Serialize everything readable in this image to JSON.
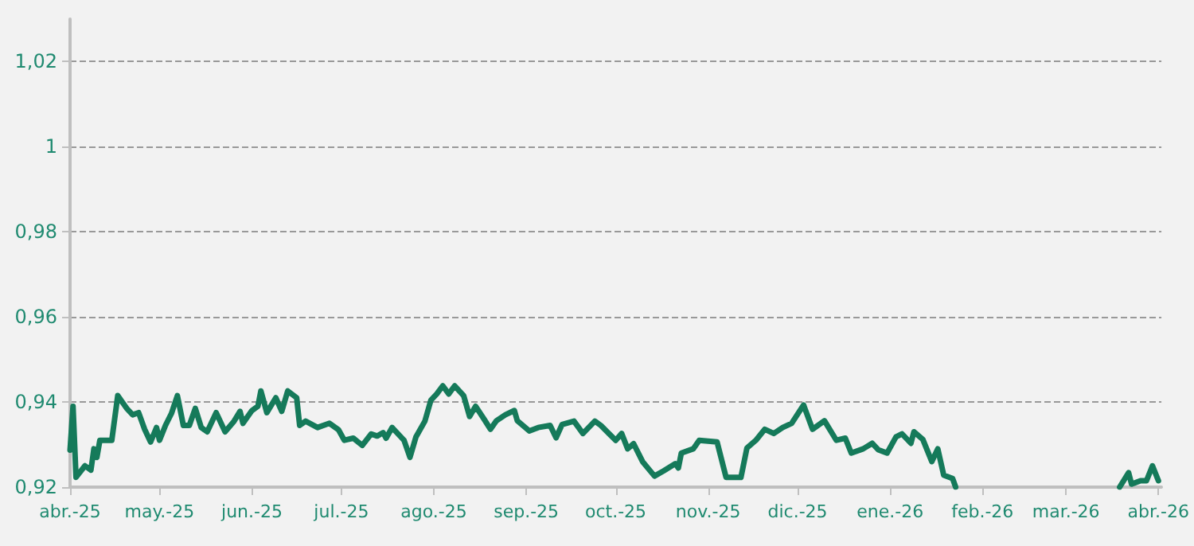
{
  "chart_data": {
    "type": "line",
    "xlim": [
      "2025-04-01",
      "2026-04-02"
    ],
    "xticks": [
      {
        "value": "2025-04-01",
        "label": "abr.-25"
      },
      {
        "value": "2025-05-01",
        "label": "may.-25"
      },
      {
        "value": "2025-06-01",
        "label": "jun.-25"
      },
      {
        "value": "2025-07-01",
        "label": "jul.-25"
      },
      {
        "value": "2025-08-01",
        "label": "ago.-25"
      },
      {
        "value": "2025-09-01",
        "label": "sep.-25"
      },
      {
        "value": "2025-10-01",
        "label": "oct.-25"
      },
      {
        "value": "2025-11-01",
        "label": "nov.-25"
      },
      {
        "value": "2025-12-01",
        "label": "dic.-25"
      },
      {
        "value": "2026-01-01",
        "label": "ene.-26"
      },
      {
        "value": "2026-02-01",
        "label": "feb.-26"
      },
      {
        "value": "2026-03-01",
        "label": "mar.-26"
      },
      {
        "value": "2026-04-01",
        "label": "abr.-26"
      }
    ],
    "ylim": [
      0.92,
      1.03
    ],
    "yticks": [
      {
        "value": 0.92,
        "label": "0,92"
      },
      {
        "value": 0.94,
        "label": "0,94"
      },
      {
        "value": 0.96,
        "label": "0,96"
      },
      {
        "value": 0.98,
        "label": "0,98"
      },
      {
        "value": 1,
        "label": "1"
      },
      {
        "value": 1.02,
        "label": "1,02"
      }
    ],
    "grid": "y",
    "marker": "none",
    "line_style": "solid",
    "series": [
      {
        "color": "#157a5a",
        "x": [
          "2025-04-01",
          "2025-04-02",
          "2025-04-03",
          "2025-04-06",
          "2025-04-08",
          "2025-04-09",
          "2025-04-10",
          "2025-04-11",
          "2025-04-15",
          "2025-04-17",
          "2025-04-20",
          "2025-04-22",
          "2025-04-24",
          "2025-04-26",
          "2025-04-28",
          "2025-04-30",
          "2025-05-01",
          "2025-05-03",
          "2025-05-05",
          "2025-05-07",
          "2025-05-09",
          "2025-05-11",
          "2025-05-13",
          "2025-05-15",
          "2025-05-17",
          "2025-05-20",
          "2025-05-23",
          "2025-05-26",
          "2025-05-28",
          "2025-05-29",
          "2025-06-01",
          "2025-06-03",
          "2025-06-04",
          "2025-06-06",
          "2025-06-09",
          "2025-06-11",
          "2025-06-13",
          "2025-06-16",
          "2025-06-17",
          "2025-06-19",
          "2025-06-23",
          "2025-06-27",
          "2025-06-30",
          "2025-07-02",
          "2025-07-05",
          "2025-07-08",
          "2025-07-11",
          "2025-07-13",
          "2025-07-15",
          "2025-07-16",
          "2025-07-18",
          "2025-07-22",
          "2025-07-24",
          "2025-07-26",
          "2025-07-29",
          "2025-07-31",
          "2025-08-02",
          "2025-08-04",
          "2025-08-06",
          "2025-08-08",
          "2025-08-11",
          "2025-08-13",
          "2025-08-15",
          "2025-08-18",
          "2025-08-20",
          "2025-08-22",
          "2025-08-25",
          "2025-08-28",
          "2025-08-29",
          "2025-09-02",
          "2025-09-05",
          "2025-09-09",
          "2025-09-11",
          "2025-09-13",
          "2025-09-17",
          "2025-09-20",
          "2025-09-24",
          "2025-09-26",
          "2025-10-01",
          "2025-10-03",
          "2025-10-05",
          "2025-10-07",
          "2025-10-10",
          "2025-10-14",
          "2025-10-17",
          "2025-10-21",
          "2025-10-22",
          "2025-10-23",
          "2025-10-27",
          "2025-10-29",
          "2025-11-04",
          "2025-11-07",
          "2025-11-12",
          "2025-11-14",
          "2025-11-17",
          "2025-11-20",
          "2025-11-23",
          "2025-11-26",
          "2025-11-29",
          "2025-12-03",
          "2025-12-06",
          "2025-12-10",
          "2025-12-14",
          "2025-12-17",
          "2025-12-19",
          "2025-12-23",
          "2025-12-26",
          "2025-12-28",
          "2025-12-31",
          "2026-01-03",
          "2026-01-05",
          "2026-01-08",
          "2026-01-09",
          "2026-01-12",
          "2026-01-15",
          "2026-01-17",
          "2026-01-19",
          "2026-01-22",
          "2026-01-23",
          "2026-01-24",
          "2026-03-18",
          "2026-03-19",
          "2026-03-22",
          "2026-03-23",
          "2026-03-26",
          "2026-03-28",
          "2026-03-30",
          "2026-04-01"
        ],
        "values": [
          0.9287,
          0.939,
          0.9223,
          0.925,
          0.924,
          0.929,
          0.927,
          0.931,
          0.931,
          0.9415,
          0.9385,
          0.937,
          0.9375,
          0.9336,
          0.9306,
          0.934,
          0.931,
          0.9345,
          0.9373,
          0.9415,
          0.9345,
          0.9345,
          0.9385,
          0.934,
          0.933,
          0.9375,
          0.933,
          0.9355,
          0.9378,
          0.935,
          0.938,
          0.939,
          0.9426,
          0.9375,
          0.941,
          0.9378,
          0.9426,
          0.941,
          0.9345,
          0.9355,
          0.934,
          0.935,
          0.9335,
          0.931,
          0.9315,
          0.9298,
          0.9325,
          0.932,
          0.9328,
          0.9315,
          0.934,
          0.931,
          0.927,
          0.9318,
          0.9355,
          0.9404,
          0.9419,
          0.9438,
          0.9419,
          0.9438,
          0.9415,
          0.9366,
          0.939,
          0.9358,
          0.9336,
          0.9356,
          0.937,
          0.938,
          0.9356,
          0.9332,
          0.934,
          0.9345,
          0.9316,
          0.9347,
          0.9355,
          0.9326,
          0.9355,
          0.9345,
          0.931,
          0.9326,
          0.929,
          0.9302,
          0.926,
          0.9226,
          0.9238,
          0.9255,
          0.9245,
          0.928,
          0.929,
          0.931,
          0.9306,
          0.9223,
          0.9223,
          0.9292,
          0.931,
          0.9336,
          0.9326,
          0.934,
          0.935,
          0.9393,
          0.9336,
          0.9356,
          0.931,
          0.9315,
          0.928,
          0.929,
          0.9303,
          0.9288,
          0.928,
          0.9318,
          0.9325,
          0.9303,
          0.933,
          0.9312,
          0.926,
          0.929,
          0.9228,
          0.922,
          0.92,
          null,
          null,
          0.92,
          0.9234,
          0.9207,
          0.9215,
          0.9215,
          0.925,
          0.9215
        ]
      }
    ]
  }
}
